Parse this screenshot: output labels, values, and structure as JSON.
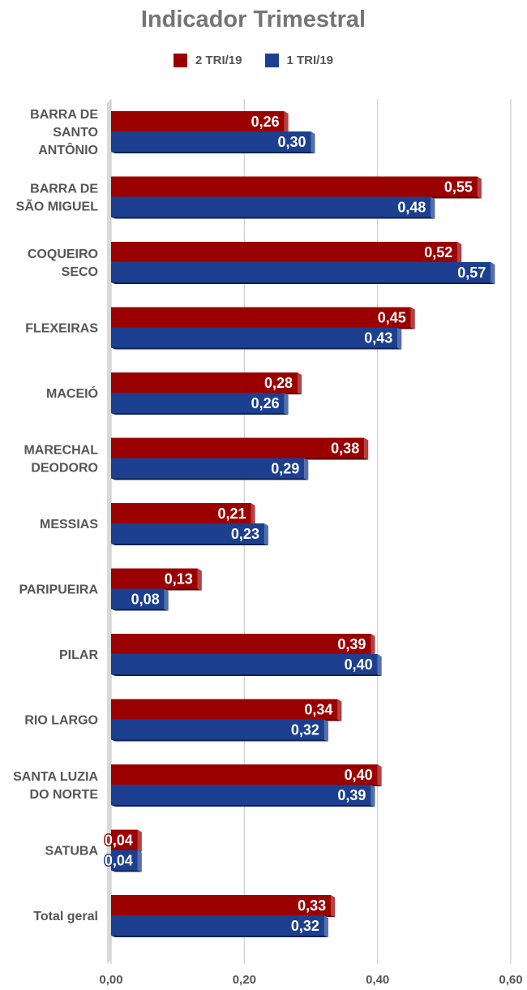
{
  "chart_data": {
    "type": "bar",
    "orientation": "horizontal",
    "title": "Indicador Trimestral",
    "categories": [
      "BARRA DE SANTO ANTÔNIO",
      "BARRA DE SÃO MIGUEL",
      "COQUEIRO SECO",
      "FLEXEIRAS",
      "MACEIÓ",
      "MARECHAL DEODORO",
      "MESSIAS",
      "PARIPUEIRA",
      "PILAR",
      "RIO LARGO",
      "SANTA LUZIA DO NORTE",
      "SATUBA",
      "Total geral"
    ],
    "category_lines": [
      [
        "BARRA DE",
        "SANTO",
        "ANTÔNIO"
      ],
      [
        "BARRA DE",
        "SÃO MIGUEL"
      ],
      [
        "COQUEIRO",
        "SECO"
      ],
      [
        "FLEXEIRAS"
      ],
      [
        "MACEIÓ"
      ],
      [
        "MARECHAL",
        "DEODORO"
      ],
      [
        "MESSIAS"
      ],
      [
        "PARIPUEIRA"
      ],
      [
        "PILAR"
      ],
      [
        "RIO LARGO"
      ],
      [
        "SANTA LUZIA",
        "DO NORTE"
      ],
      [
        "SATUBA"
      ],
      [
        "Total geral"
      ]
    ],
    "series": [
      {
        "name": "2 TRI/19",
        "color": "#9b0000",
        "values": [
          0.26,
          0.55,
          0.52,
          0.45,
          0.28,
          0.38,
          0.21,
          0.13,
          0.39,
          0.34,
          0.4,
          0.04,
          0.33
        ],
        "labels": [
          "0,26",
          "0,55",
          "0,52",
          "0,45",
          "0,28",
          "0,38",
          "0,21",
          "0,13",
          "0,39",
          "0,34",
          "0,40",
          "0,04",
          "0,33"
        ]
      },
      {
        "name": "1 TRI/19",
        "color": "#1c3f8f",
        "values": [
          0.3,
          0.48,
          0.57,
          0.43,
          0.26,
          0.29,
          0.23,
          0.08,
          0.4,
          0.32,
          0.39,
          0.04,
          0.32
        ],
        "labels": [
          "0,30",
          "0,48",
          "0,57",
          "0,43",
          "0,26",
          "0,29",
          "0,23",
          "0,08",
          "0,40",
          "0,32",
          "0,39",
          "0,04",
          "0,32"
        ]
      }
    ],
    "xlim": [
      0,
      0.6
    ],
    "xticks": [
      0,
      0.2,
      0.4,
      0.6
    ],
    "xtick_labels": [
      "0,00",
      "0,20",
      "0,40",
      "0,60"
    ],
    "grid": true,
    "legend_position": "top-center",
    "data_labels": true
  }
}
